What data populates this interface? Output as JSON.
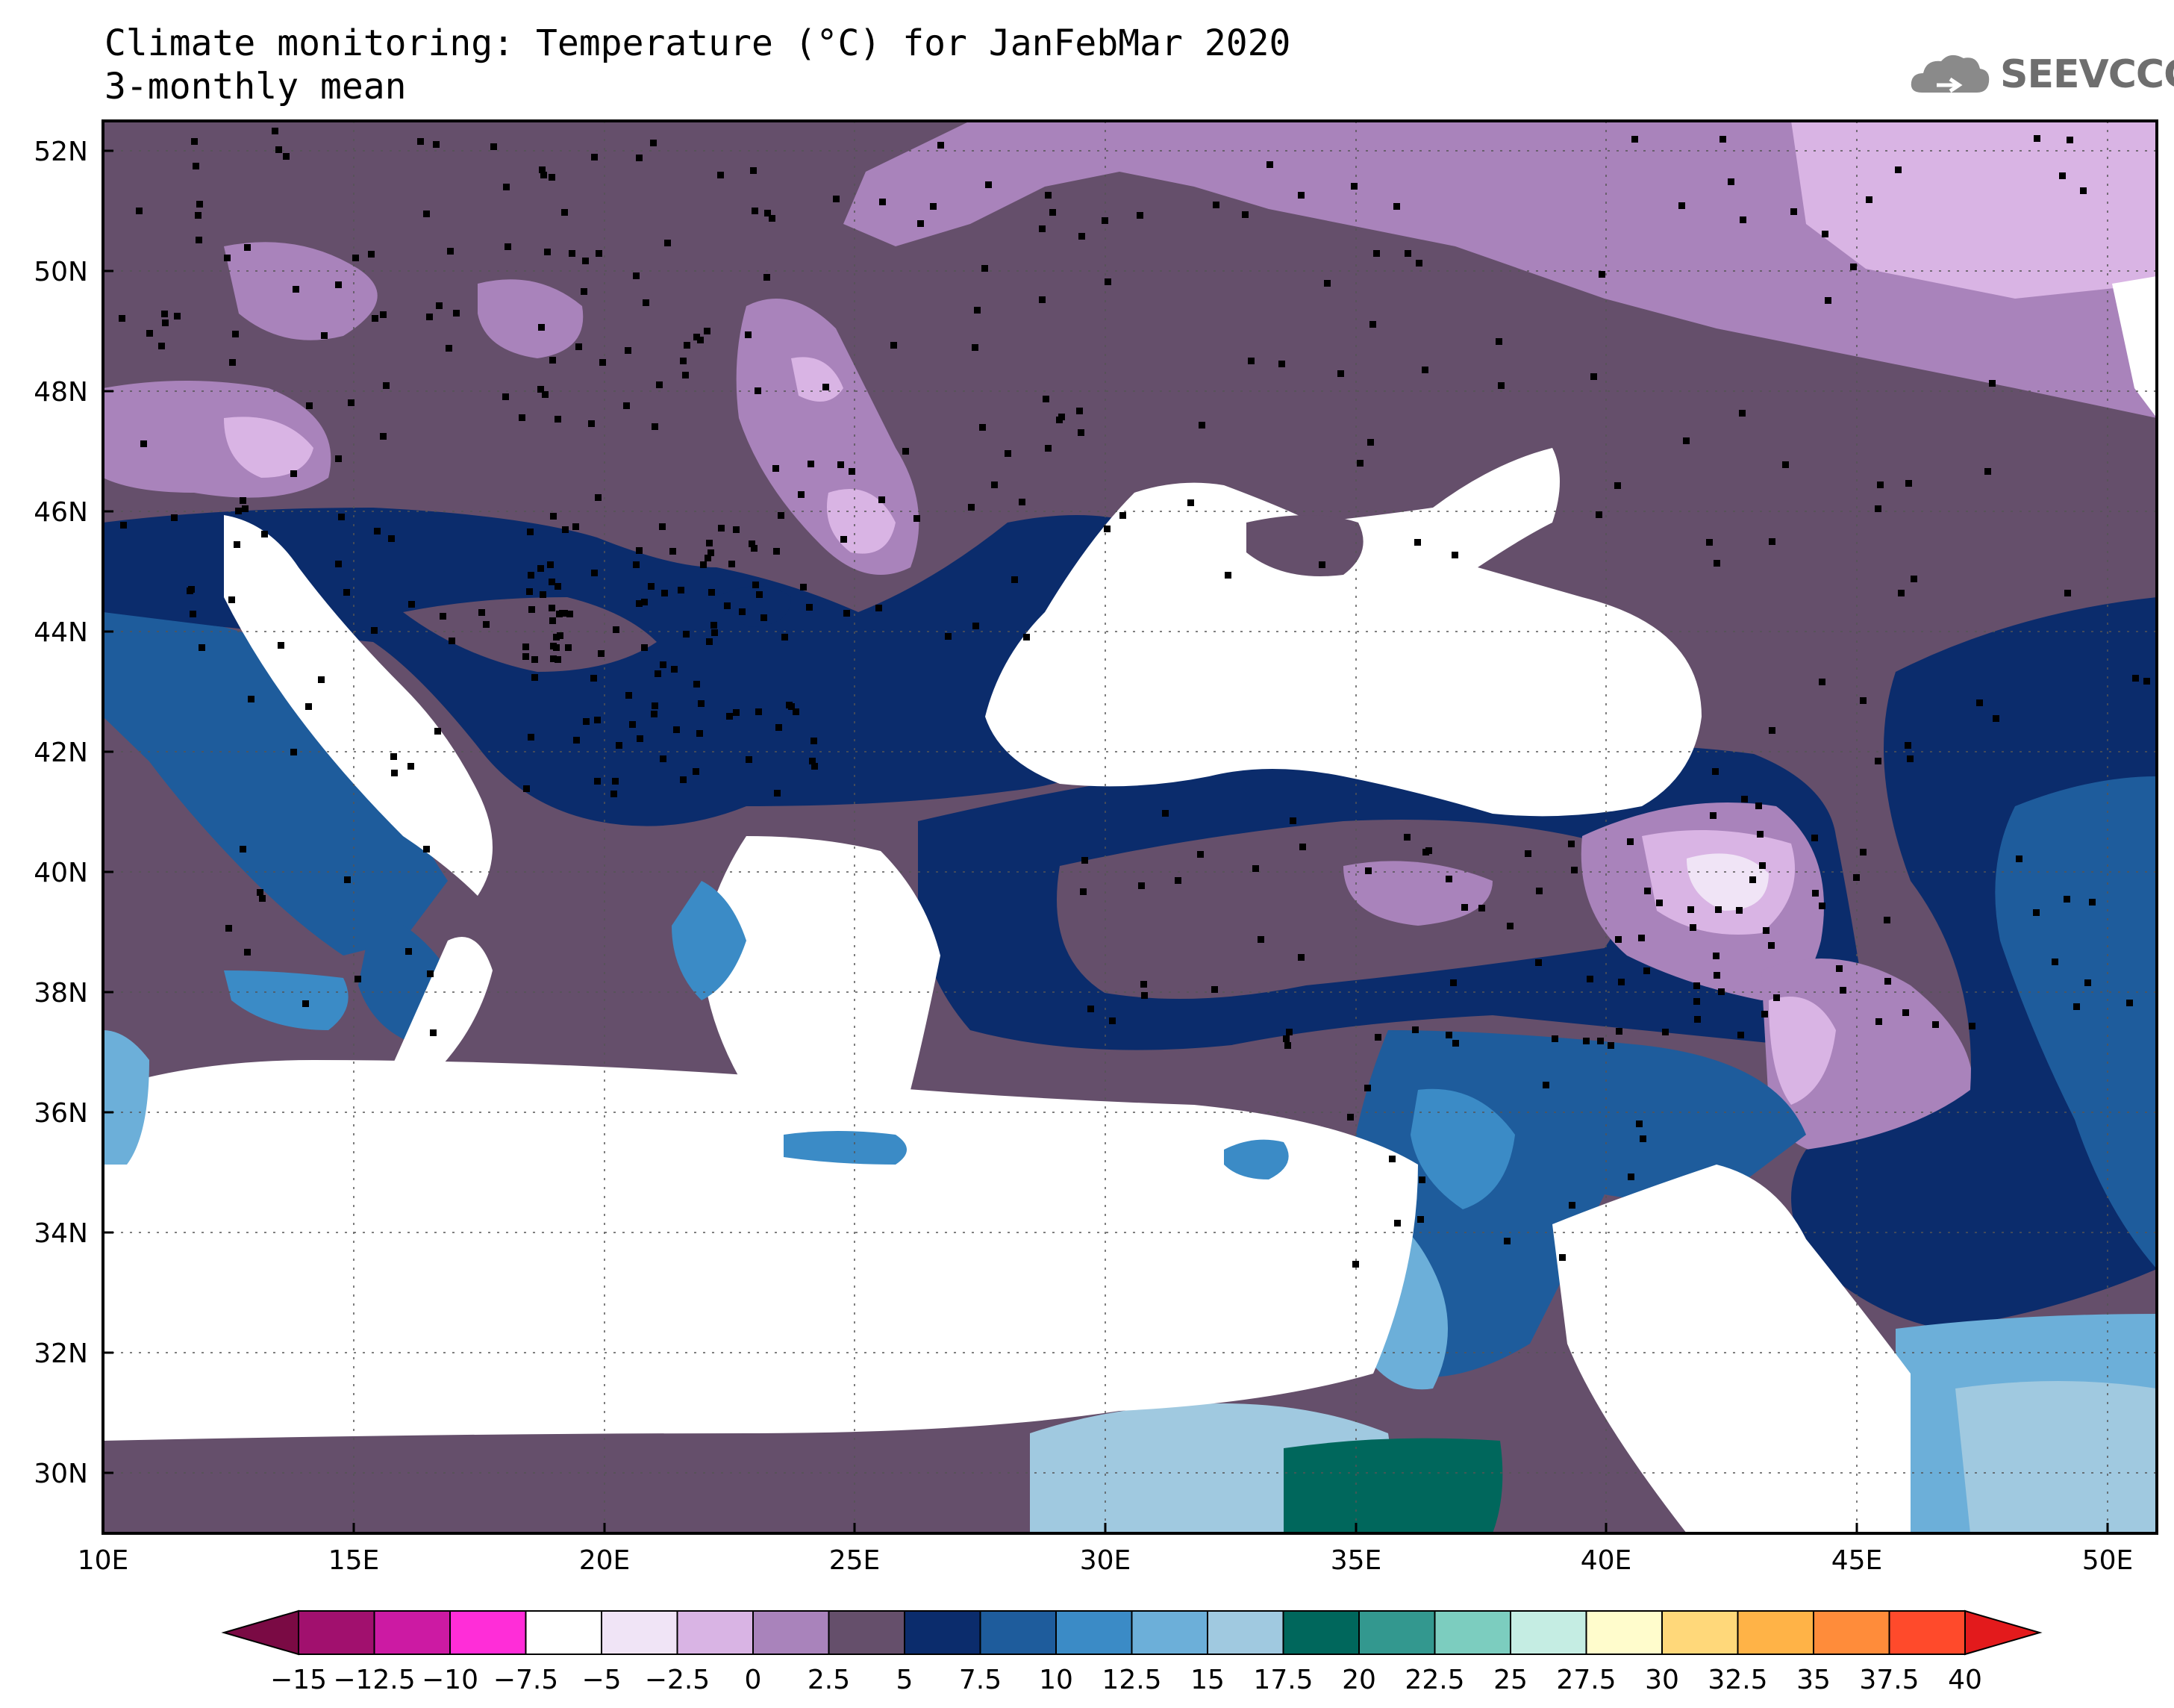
{
  "title": {
    "line1": "Climate monitoring: Temperature (°C) for JanFebMar 2020",
    "line2": "3-monthly mean"
  },
  "logo": {
    "text": "SEEVCCC",
    "icon": "cloud-icon"
  },
  "axes": {
    "lon_labels": [
      "10E",
      "15E",
      "20E",
      "25E",
      "30E",
      "35E",
      "40E",
      "45E",
      "50E"
    ],
    "lat_labels": [
      "52N",
      "50N",
      "48N",
      "46N",
      "44N",
      "42N",
      "40N",
      "38N",
      "36N",
      "34N",
      "32N",
      "30N"
    ],
    "lon_range": [
      10,
      51
    ],
    "lat_range": [
      29,
      52.5
    ],
    "grid": "dotted"
  },
  "colorbar": {
    "labels": [
      "-15",
      "-12.5",
      "-10",
      "-7.5",
      "-5",
      "-2.5",
      "0",
      "2.5",
      "5",
      "7.5",
      "10",
      "12.5",
      "15",
      "17.5",
      "20",
      "22.5",
      "25",
      "27.5",
      "30",
      "32.5",
      "35",
      "37.5",
      "40"
    ],
    "colors": [
      "#7a0a44",
      "#a1106e",
      "#cc1aa3",
      "#ff2dd8",
      "#ffffff",
      "#f0e4f6",
      "#d9b4e4",
      "#a983bb",
      "#654f6b",
      "#0b2c6c",
      "#1e5c9c",
      "#3b8bc6",
      "#6cafd9",
      "#a0c9e0",
      "#00675c",
      "#33988f",
      "#7ccdbf",
      "#c5ede3",
      "#fffccc",
      "#ffd87a",
      "#ffb347",
      "#ff8c3a",
      "#ff4a2b",
      "#e31a1c"
    ]
  }
}
